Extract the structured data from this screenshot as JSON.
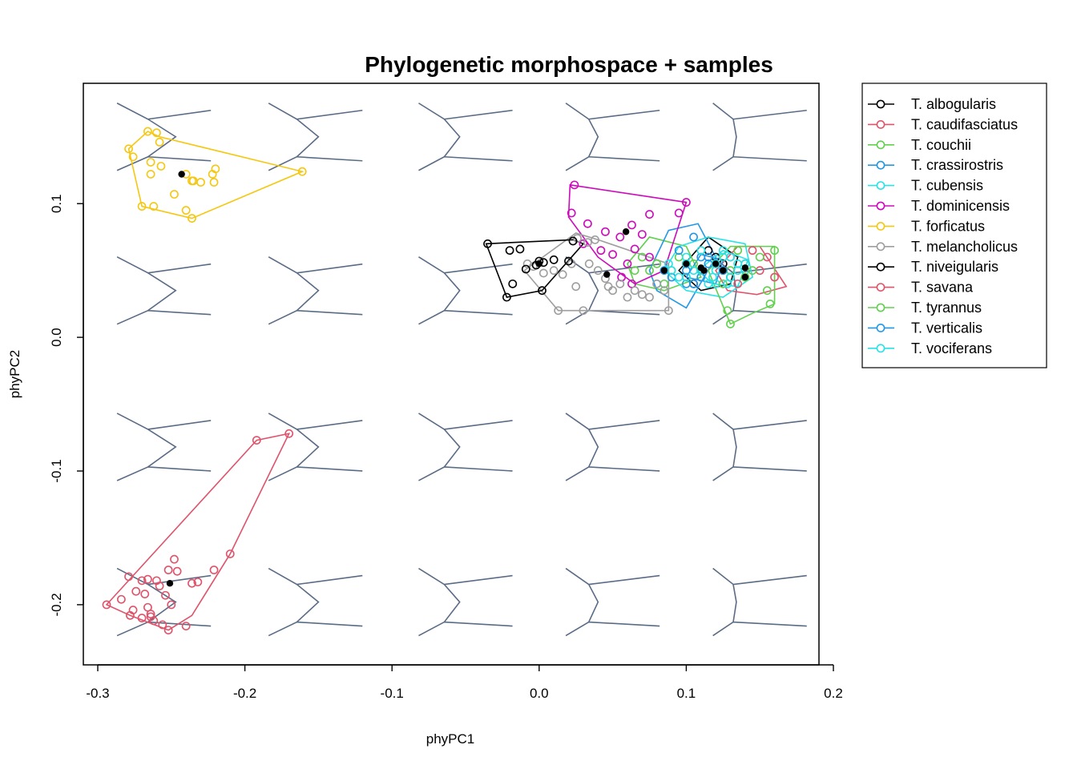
{
  "chart_data": {
    "type": "scatter",
    "title": "Phylogenetic morphospace + samples",
    "xlabel": "phyPC1",
    "ylabel": "phyPC2",
    "xlim": [
      -0.3,
      0.2
    ],
    "ylim": [
      -0.245,
      0.19
    ],
    "xticks": [
      -0.3,
      -0.2,
      -0.1,
      0.0,
      0.1,
      0.2
    ],
    "xtick_labels": [
      "-0.3",
      "-0.2",
      "-0.1",
      "0.0",
      "0.1",
      "0.2"
    ],
    "yticks": [
      -0.2,
      -0.1,
      0.0,
      0.1
    ],
    "ytick_labels": [
      "-0.2",
      "-0.1",
      "0.0",
      "0.1"
    ],
    "grid": false,
    "legend_position": "outside-right",
    "shape_color": "#5a6b85",
    "backdrop_grid": {
      "columns_x": [
        -0.255,
        -0.152,
        -0.05,
        0.05,
        0.15
      ],
      "rows_y": [
        0.15,
        0.035,
        -0.082,
        -0.198
      ]
    },
    "series": [
      {
        "name": "T. albogularis",
        "color": "#000000",
        "points": [
          [
            0.1,
            0.055
          ],
          [
            0.11,
            0.05
          ],
          [
            0.12,
            0.06
          ],
          [
            0.13,
            0.045
          ],
          [
            0.115,
            0.065
          ],
          [
            0.105,
            0.04
          ],
          [
            0.125,
            0.055
          ]
        ],
        "hull": [
          [
            0.095,
            0.05
          ],
          [
            0.115,
            0.075
          ],
          [
            0.135,
            0.06
          ],
          [
            0.13,
            0.04
          ],
          [
            0.11,
            0.035
          ]
        ],
        "mean": [
          0.12,
          0.055
        ]
      },
      {
        "name": "T. caudifasciatus",
        "color": "#df536b",
        "points": [
          [
            0.13,
            0.06
          ],
          [
            0.14,
            0.055
          ],
          [
            0.15,
            0.05
          ],
          [
            0.16,
            0.045
          ],
          [
            0.145,
            0.065
          ],
          [
            0.135,
            0.04
          ],
          [
            0.155,
            0.06
          ],
          [
            0.14,
            0.045
          ],
          [
            0.125,
            0.05
          ]
        ],
        "hull": [
          [
            0.12,
            0.05
          ],
          [
            0.135,
            0.068
          ],
          [
            0.15,
            0.068
          ],
          [
            0.168,
            0.038
          ],
          [
            0.148,
            0.032
          ],
          [
            0.128,
            0.035
          ]
        ],
        "mean": [
          0.14,
          0.052
        ]
      },
      {
        "name": "T. couchii",
        "color": "#61d04f",
        "points": [
          [
            0.08,
            0.055
          ],
          [
            0.09,
            0.05
          ],
          [
            0.1,
            0.045
          ],
          [
            0.085,
            0.04
          ],
          [
            0.075,
            0.05
          ],
          [
            0.095,
            0.06
          ],
          [
            0.07,
            0.06
          ],
          [
            0.065,
            0.05
          ],
          [
            0.105,
            0.055
          ]
        ],
        "hull": [
          [
            0.06,
            0.055
          ],
          [
            0.075,
            0.075
          ],
          [
            0.1,
            0.068
          ],
          [
            0.11,
            0.045
          ],
          [
            0.085,
            0.035
          ],
          [
            0.065,
            0.04
          ]
        ],
        "mean": [
          0.085,
          0.05
        ]
      },
      {
        "name": "T. crassirostris",
        "color": "#2297e6",
        "points": [
          [
            0.09,
            0.045
          ],
          [
            0.1,
            0.04
          ],
          [
            0.11,
            0.06
          ],
          [
            0.095,
            0.065
          ],
          [
            0.085,
            0.05
          ],
          [
            0.105,
            0.075
          ],
          [
            0.115,
            0.055
          ],
          [
            0.08,
            0.04
          ]
        ],
        "hull": [
          [
            0.075,
            0.05
          ],
          [
            0.088,
            0.08
          ],
          [
            0.108,
            0.085
          ],
          [
            0.12,
            0.06
          ],
          [
            0.1,
            0.022
          ],
          [
            0.08,
            0.035
          ]
        ],
        "mean": [
          0.1,
          0.055
        ]
      },
      {
        "name": "T. cubensis",
        "color": "#28e2e5",
        "points": [
          [
            0.09,
            0.05
          ],
          [
            0.1,
            0.055
          ],
          [
            0.11,
            0.045
          ],
          [
            0.12,
            0.05
          ],
          [
            0.13,
            0.06
          ],
          [
            0.135,
            0.055
          ],
          [
            0.1,
            0.06
          ],
          [
            0.095,
            0.045
          ],
          [
            0.115,
            0.04
          ],
          [
            0.125,
            0.065
          ],
          [
            0.105,
            0.05
          ],
          [
            0.088,
            0.055
          ],
          [
            0.14,
            0.05
          ],
          [
            0.12,
            0.04
          ],
          [
            0.11,
            0.065
          ],
          [
            0.13,
            0.045
          ],
          [
            0.1,
            0.045
          ]
        ],
        "hull": [
          [
            0.085,
            0.05
          ],
          [
            0.095,
            0.068
          ],
          [
            0.115,
            0.075
          ],
          [
            0.14,
            0.07
          ],
          [
            0.145,
            0.045
          ],
          [
            0.125,
            0.03
          ],
          [
            0.1,
            0.035
          ]
        ],
        "mean": [
          0.11,
          0.052
        ]
      },
      {
        "name": "T. dominicensis",
        "color": "#cd0bbc",
        "points": [
          [
            0.024,
            0.114
          ],
          [
            0.022,
            0.093
          ],
          [
            0.033,
            0.085
          ],
          [
            0.045,
            0.079
          ],
          [
            0.055,
            0.075
          ],
          [
            0.063,
            0.084
          ],
          [
            0.07,
            0.077
          ],
          [
            0.075,
            0.092
          ],
          [
            0.095,
            0.093
          ],
          [
            0.1,
            0.101
          ],
          [
            0.065,
            0.066
          ],
          [
            0.06,
            0.055
          ],
          [
            0.05,
            0.062
          ],
          [
            0.042,
            0.065
          ],
          [
            0.056,
            0.045
          ],
          [
            0.063,
            0.04
          ],
          [
            0.03,
            0.07
          ],
          [
            0.075,
            0.06
          ]
        ],
        "hull": [
          [
            0.021,
            0.114
          ],
          [
            0.1,
            0.101
          ],
          [
            0.085,
            0.05
          ],
          [
            0.065,
            0.04
          ],
          [
            0.04,
            0.06
          ],
          [
            0.02,
            0.09
          ]
        ],
        "mean": [
          0.059,
          0.079
        ]
      },
      {
        "name": "T. forficatus",
        "color": "#f5c710",
        "points": [
          [
            -0.279,
            0.141
          ],
          [
            -0.276,
            0.135
          ],
          [
            -0.27,
            0.098
          ],
          [
            -0.266,
            0.154
          ],
          [
            -0.262,
            0.098
          ],
          [
            -0.26,
            0.153
          ],
          [
            -0.258,
            0.146
          ],
          [
            -0.264,
            0.122
          ],
          [
            -0.264,
            0.131
          ],
          [
            -0.257,
            0.128
          ],
          [
            -0.24,
            0.122
          ],
          [
            -0.236,
            0.117
          ],
          [
            -0.235,
            0.117
          ],
          [
            -0.23,
            0.116
          ],
          [
            -0.222,
            0.122
          ],
          [
            -0.221,
            0.116
          ],
          [
            -0.22,
            0.126
          ],
          [
            -0.24,
            0.095
          ],
          [
            -0.236,
            0.089
          ],
          [
            -0.161,
            0.124
          ],
          [
            -0.248,
            0.107
          ]
        ],
        "hull": [
          [
            -0.279,
            0.141
          ],
          [
            -0.266,
            0.154
          ],
          [
            -0.258,
            0.15
          ],
          [
            -0.161,
            0.124
          ],
          [
            -0.236,
            0.089
          ],
          [
            -0.27,
            0.098
          ]
        ],
        "mean": [
          -0.243,
          0.122
        ]
      },
      {
        "name": "T. melancholicus",
        "color": "#9e9e9e",
        "points": [
          [
            -0.008,
            0.055
          ],
          [
            -0.004,
            0.053
          ],
          [
            0.003,
            0.048
          ],
          [
            0.01,
            0.05
          ],
          [
            0.016,
            0.047
          ],
          [
            0.022,
            0.055
          ],
          [
            0.026,
            0.074
          ],
          [
            0.033,
            0.071
          ],
          [
            0.038,
            0.073
          ],
          [
            0.04,
            0.05
          ],
          [
            0.045,
            0.044
          ],
          [
            0.05,
            0.035
          ],
          [
            0.055,
            0.04
          ],
          [
            0.06,
            0.03
          ],
          [
            0.065,
            0.035
          ],
          [
            0.07,
            0.032
          ],
          [
            0.075,
            0.03
          ],
          [
            0.08,
            0.04
          ],
          [
            0.085,
            0.035
          ],
          [
            0.088,
            0.02
          ],
          [
            0.013,
            0.02
          ],
          [
            0.025,
            0.038
          ],
          [
            0.03,
            0.02
          ],
          [
            0.034,
            0.055
          ],
          [
            0.047,
            0.038
          ]
        ],
        "hull": [
          [
            -0.01,
            0.05
          ],
          [
            0.025,
            0.078
          ],
          [
            0.04,
            0.073
          ],
          [
            0.088,
            0.055
          ],
          [
            0.088,
            0.02
          ],
          [
            0.013,
            0.02
          ]
        ],
        "mean": [
          0.046,
          0.047
        ]
      },
      {
        "name": "T. niveigularis",
        "color": "#000000",
        "points": [
          [
            -0.035,
            0.07
          ],
          [
            -0.02,
            0.065
          ],
          [
            -0.013,
            0.066
          ],
          [
            -0.009,
            0.051
          ],
          [
            -0.022,
            0.03
          ],
          [
            -0.018,
            0.04
          ],
          [
            0.0,
            0.057
          ],
          [
            0.002,
            0.035
          ],
          [
            0.01,
            0.058
          ],
          [
            0.02,
            0.057
          ],
          [
            0.023,
            0.072
          ],
          [
            0.003,
            0.056
          ],
          [
            -0.002,
            0.054
          ]
        ],
        "hull": [
          [
            -0.036,
            0.07
          ],
          [
            0.023,
            0.073
          ],
          [
            0.03,
            0.07
          ],
          [
            0.002,
            0.035
          ],
          [
            -0.022,
            0.03
          ]
        ],
        "mean": [
          0.0,
          0.055
        ]
      },
      {
        "name": "T. savana",
        "color": "#df536b",
        "points": [
          [
            -0.294,
            -0.2
          ],
          [
            -0.284,
            -0.196
          ],
          [
            -0.279,
            -0.179
          ],
          [
            -0.278,
            -0.208
          ],
          [
            -0.276,
            -0.204
          ],
          [
            -0.274,
            -0.19
          ],
          [
            -0.27,
            -0.182
          ],
          [
            -0.27,
            -0.21
          ],
          [
            -0.266,
            -0.181
          ],
          [
            -0.266,
            -0.202
          ],
          [
            -0.264,
            -0.209
          ],
          [
            -0.264,
            -0.207
          ],
          [
            -0.262,
            -0.212
          ],
          [
            -0.26,
            -0.182
          ],
          [
            -0.258,
            -0.186
          ],
          [
            -0.256,
            -0.215
          ],
          [
            -0.254,
            -0.193
          ],
          [
            -0.252,
            -0.219
          ],
          [
            -0.252,
            -0.174
          ],
          [
            -0.25,
            -0.2
          ],
          [
            -0.248,
            -0.166
          ],
          [
            -0.246,
            -0.175
          ],
          [
            -0.24,
            -0.216
          ],
          [
            -0.236,
            -0.184
          ],
          [
            -0.232,
            -0.183
          ],
          [
            -0.221,
            -0.174
          ],
          [
            -0.21,
            -0.162
          ],
          [
            -0.192,
            -0.077
          ],
          [
            -0.17,
            -0.072
          ],
          [
            -0.268,
            -0.192
          ]
        ],
        "hull": [
          [
            -0.294,
            -0.2
          ],
          [
            -0.192,
            -0.077
          ],
          [
            -0.17,
            -0.072
          ],
          [
            -0.21,
            -0.162
          ],
          [
            -0.236,
            -0.208
          ],
          [
            -0.252,
            -0.219
          ],
          [
            -0.278,
            -0.208
          ]
        ],
        "mean": [
          -0.251,
          -0.184
        ]
      },
      {
        "name": "T. tyrannus",
        "color": "#61d04f",
        "points": [
          [
            0.13,
            0.05
          ],
          [
            0.14,
            0.045
          ],
          [
            0.15,
            0.06
          ],
          [
            0.155,
            0.035
          ],
          [
            0.157,
            0.025
          ],
          [
            0.16,
            0.065
          ],
          [
            0.128,
            0.02
          ],
          [
            0.13,
            0.01
          ],
          [
            0.12,
            0.055
          ],
          [
            0.135,
            0.065
          ],
          [
            0.145,
            0.05
          ],
          [
            0.125,
            0.04
          ]
        ],
        "hull": [
          [
            0.115,
            0.05
          ],
          [
            0.13,
            0.068
          ],
          [
            0.16,
            0.068
          ],
          [
            0.16,
            0.025
          ],
          [
            0.145,
            0.018
          ],
          [
            0.13,
            0.01
          ]
        ],
        "mean": [
          0.14,
          0.045
        ]
      },
      {
        "name": "T. verticalis",
        "color": "#2297e6",
        "points": [
          [
            0.1,
            0.05
          ],
          [
            0.11,
            0.045
          ],
          [
            0.12,
            0.055
          ],
          [
            0.115,
            0.06
          ],
          [
            0.105,
            0.04
          ],
          [
            0.125,
            0.05
          ]
        ],
        "hull": [
          [
            0.1,
            0.045
          ],
          [
            0.11,
            0.062
          ],
          [
            0.125,
            0.058
          ],
          [
            0.12,
            0.04
          ]
        ],
        "mean": [
          0.112,
          0.05
        ]
      },
      {
        "name": "T. vociferans",
        "color": "#28e2e5",
        "points": [
          [
            0.11,
            0.05
          ],
          [
            0.12,
            0.055
          ],
          [
            0.125,
            0.06
          ],
          [
            0.13,
            0.045
          ],
          [
            0.135,
            0.05
          ],
          [
            0.14,
            0.055
          ],
          [
            0.128,
            0.04
          ],
          [
            0.118,
            0.045
          ]
        ],
        "hull": [
          [
            0.108,
            0.05
          ],
          [
            0.125,
            0.065
          ],
          [
            0.142,
            0.058
          ],
          [
            0.135,
            0.038
          ],
          [
            0.118,
            0.04
          ]
        ],
        "mean": [
          0.125,
          0.05
        ]
      }
    ]
  }
}
